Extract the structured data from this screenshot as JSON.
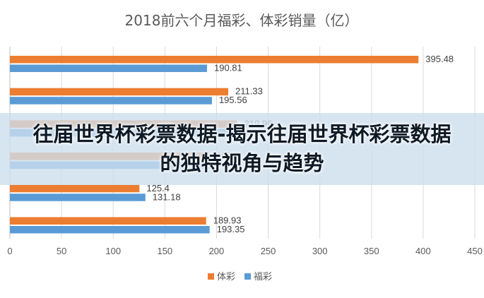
{
  "chart_data": {
    "type": "bar",
    "orientation": "horizontal",
    "title": "2018前六个月福彩、体彩销量（亿）",
    "xlim": [
      0,
      450
    ],
    "xticks": [
      0,
      50,
      100,
      150,
      200,
      250,
      300,
      350,
      400,
      450
    ],
    "tick_labels": [
      "0",
      "50",
      "100",
      "150",
      "200",
      "250",
      "300",
      "350",
      "400",
      "450"
    ],
    "group_count": 6,
    "series": [
      {
        "name": "体彩",
        "color": "#ED7D31",
        "values": [
          395.48,
          211.33,
          219.96,
          192.8,
          125.4,
          189.93
        ],
        "labels": [
          "395.48",
          "211.33",
          "219.96",
          "192.8",
          "125.4",
          "189.93"
        ]
      },
      {
        "name": "福彩",
        "color": "#5B9BD5",
        "values": [
          190.81,
          195.56,
          215,
          194.2,
          131.18,
          193.35
        ],
        "labels": [
          "190.81",
          "195.56",
          "",
          "",
          "131.18",
          "193.35"
        ]
      }
    ],
    "legend_position": "bottom",
    "grid": true
  },
  "banner": {
    "text": "往届世界杯彩票数据-揭示往届世界杯彩票数据的独特视角与趋势"
  }
}
